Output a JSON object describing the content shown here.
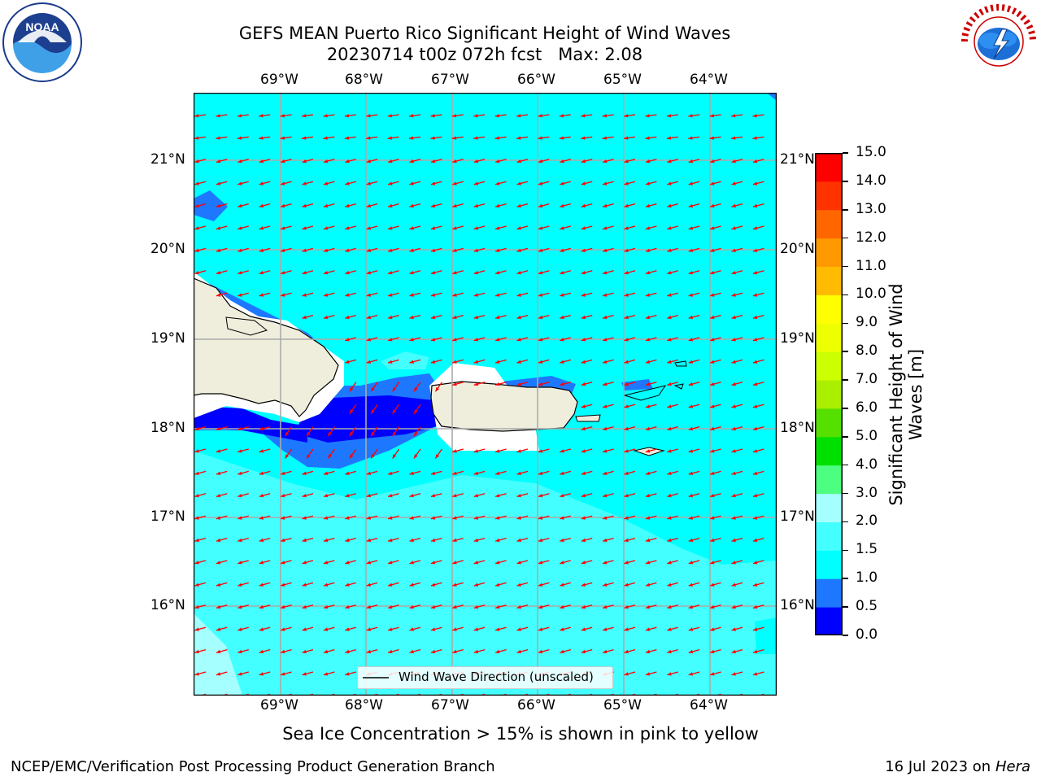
{
  "header": {
    "title_line1": "GEFS MEAN Puerto Rico Significant Height of Wind Waves",
    "title_line2": "20230714 t00z 072h fcst   Max: 2.08"
  },
  "logos": {
    "left_agency": "NOAA",
    "right_agency": "NATIONAL WEATHER SERVICE"
  },
  "map": {
    "lon_labels": [
      "69°W",
      "68°W",
      "67°W",
      "66°W",
      "65°W",
      "64°W"
    ],
    "lat_labels": [
      "21°N",
      "20°N",
      "19°N",
      "18°N",
      "17°N",
      "16°N"
    ],
    "legend_label": "Wind Wave Direction (unscaled)",
    "ocean_color": "#00ffff",
    "band_color": "#44ffff",
    "band_light_color": "#99ffff",
    "low_color": "#1e78ff",
    "lowest_color": "#0000ff",
    "land_color": "#efeedd",
    "arrow_color": "#ff0000"
  },
  "colorbar": {
    "label": "Significant Height of Wind Waves [m]",
    "ticks": [
      "0.0",
      "0.5",
      "1.0",
      "1.5",
      "2.0",
      "3.0",
      "4.0",
      "5.0",
      "6.0",
      "7.0",
      "8.0",
      "9.0",
      "10.0",
      "11.0",
      "12.0",
      "13.0",
      "14.0",
      "15.0"
    ],
    "colors": [
      "#0000ff",
      "#1e78ff",
      "#00ffff",
      "#44ffff",
      "#a6ffff",
      "#4dff80",
      "#00e000",
      "#55e000",
      "#aaee00",
      "#ccff00",
      "#eeff00",
      "#ffff00",
      "#ffbb00",
      "#ff9900",
      "#ff6600",
      "#ff3300",
      "#ff0000"
    ]
  },
  "subtitle": "Sea Ice Concentration > 15% is shown in pink to yellow",
  "footer": {
    "left": "NCEP/EMC/Verification Post Processing Product Generation Branch",
    "right_prefix": "16 Jul 2023 on ",
    "right_host": "Hera"
  }
}
